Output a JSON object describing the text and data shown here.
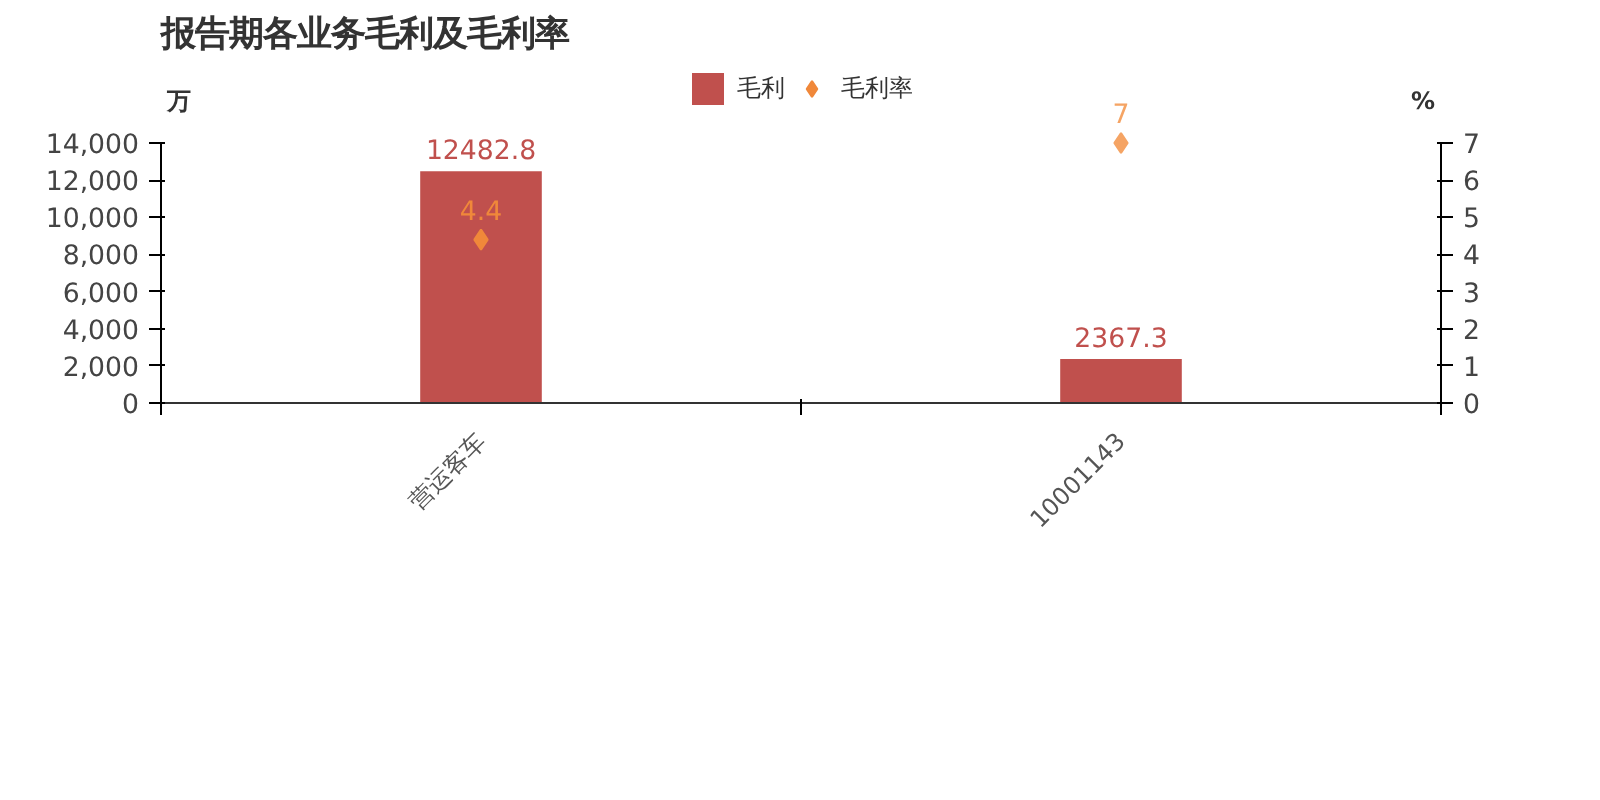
{
  "chart_data": {
    "type": "bar",
    "title": "报告期各业务毛利及毛利率",
    "categories": [
      "营运客车",
      "10001143"
    ],
    "series": [
      {
        "name": "毛利",
        "color": "#c0504d",
        "values": [
          12482.8,
          2367.3
        ]
      },
      {
        "name": "毛利率",
        "type": "scatter",
        "axis": "y2",
        "color": "#f0954a",
        "colors": [
          "#f0883a",
          "#f5a464"
        ],
        "values": [
          4.4,
          7
        ]
      }
    ],
    "ylabel": "万",
    "y2label": "%",
    "ylim": [
      0,
      14000
    ],
    "yticks": [
      {
        "value": 0,
        "label": "0"
      },
      {
        "value": 2000,
        "label": "2,000"
      },
      {
        "value": 4000,
        "label": "4,000"
      },
      {
        "value": 6000,
        "label": "6,000"
      },
      {
        "value": 8000,
        "label": "8,000"
      },
      {
        "value": 10000,
        "label": "10,000"
      },
      {
        "value": 12000,
        "label": "12,000"
      },
      {
        "value": 14000,
        "label": "14,000"
      }
    ],
    "y2lim": [
      0,
      7
    ],
    "y2ticks": [
      0,
      1,
      2,
      3,
      4,
      5,
      6,
      7
    ],
    "data_labels": true,
    "legend": "top",
    "grid": false,
    "marker": "diamond"
  }
}
